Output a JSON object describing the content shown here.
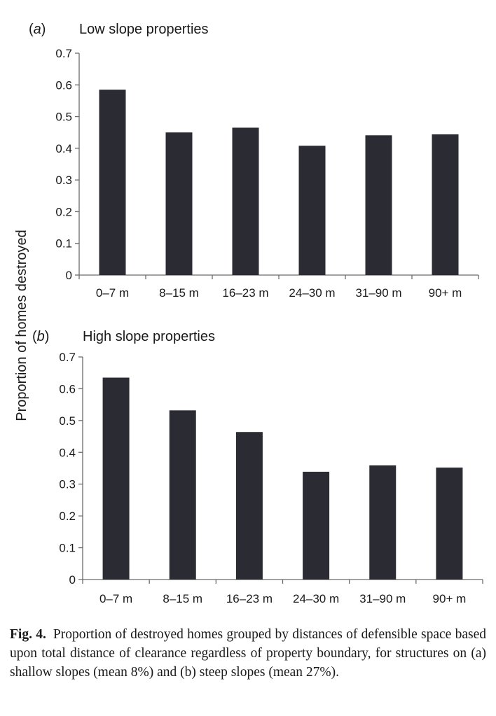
{
  "chart_data": [
    {
      "type": "bar",
      "panel_label": "(a)",
      "title": "Low slope properties",
      "ylabel": "Proportion of homes destroyed",
      "xlabel": "",
      "ylim": [
        0,
        0.7
      ],
      "yticks": [
        "0",
        "0.1",
        "0.2",
        "0.3",
        "0.4",
        "0.5",
        "0.6",
        "0.7"
      ],
      "categories": [
        "0–7 m",
        "8–15 m",
        "16–23 m",
        "24–30 m",
        "31–90 m",
        "90+ m"
      ],
      "values": [
        0.585,
        0.45,
        0.465,
        0.408,
        0.441,
        0.444
      ],
      "bar_color": "#2b2b33",
      "grid": false
    },
    {
      "type": "bar",
      "panel_label": "(b)",
      "title": "High slope properties",
      "ylabel": "Proportion of homes destroyed",
      "xlabel": "",
      "ylim": [
        0,
        0.7
      ],
      "yticks": [
        "0",
        "0.1",
        "0.2",
        "0.3",
        "0.4",
        "0.5",
        "0.6",
        "0.7"
      ],
      "categories": [
        "0–7 m",
        "8–15 m",
        "16–23 m",
        "24–30 m",
        "31–90 m",
        "90+ m"
      ],
      "values": [
        0.635,
        0.532,
        0.464,
        0.339,
        0.359,
        0.352
      ],
      "bar_color": "#2b2b33",
      "grid": false
    }
  ],
  "caption": {
    "label": "Fig. 4.",
    "text": "Proportion of destroyed homes grouped by distances of defensible space based upon total distance of clearance regardless of property boundary, for structures on (a) shallow slopes (mean 8%) and (b) steep slopes (mean 27%)."
  }
}
